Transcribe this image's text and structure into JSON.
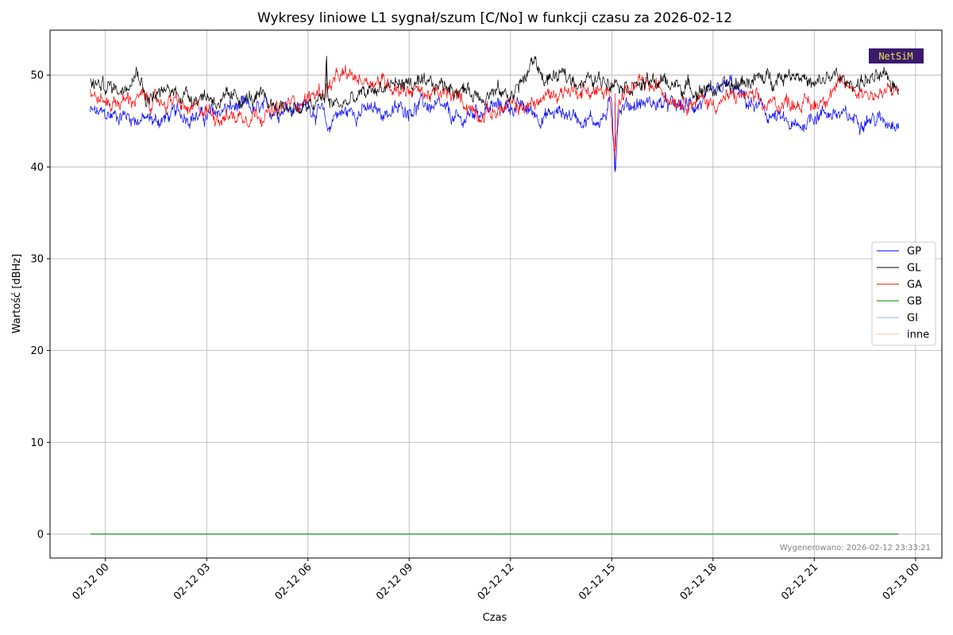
{
  "chart_data": {
    "type": "line",
    "title": "Wykresy liniowe L1 sygnał/szum [C/No] w funkcji czasu za 2026-02-12",
    "xlabel": "Czas",
    "ylabel": "Wartość [dBHz]",
    "x_unit": "hours of 2026-02-12",
    "xlim": [
      -1.64,
      24.78
    ],
    "ylim": [
      -2.6,
      54.9
    ],
    "x_ticks": [
      {
        "value": 0,
        "label": "02-12 00"
      },
      {
        "value": 3,
        "label": "02-12 03"
      },
      {
        "value": 6,
        "label": "02-12 06"
      },
      {
        "value": 9,
        "label": "02-12 09"
      },
      {
        "value": 12,
        "label": "02-12 12"
      },
      {
        "value": 15,
        "label": "02-12 15"
      },
      {
        "value": 18,
        "label": "02-12 18"
      },
      {
        "value": 21,
        "label": "02-12 21"
      },
      {
        "value": 24,
        "label": "02-13 00"
      }
    ],
    "y_ticks": [
      0,
      10,
      20,
      30,
      40,
      50
    ],
    "grid": true,
    "legend_position": "right",
    "series": [
      {
        "name": "GP",
        "color": "#0000ff",
        "x": [
          -0.45,
          0.0,
          0.5,
          1.0,
          1.5,
          2.0,
          2.5,
          3.0,
          3.5,
          4.0,
          4.5,
          5.0,
          5.5,
          6.0,
          6.4,
          6.6,
          6.8,
          7.0,
          7.5,
          8.0,
          8.5,
          9.0,
          9.5,
          10.0,
          10.5,
          11.0,
          11.5,
          12.0,
          12.5,
          13.0,
          13.5,
          14.0,
          14.5,
          14.8,
          15.0,
          15.1,
          15.2,
          15.5,
          16.0,
          16.5,
          17.0,
          17.5,
          18.0,
          18.5,
          19.0,
          19.5,
          20.0,
          20.5,
          21.0,
          21.5,
          22.0,
          22.5,
          23.0,
          23.5,
          23.5
        ],
        "y": [
          46.0,
          45.5,
          45.8,
          45.2,
          45.0,
          45.6,
          45.8,
          45.3,
          46.3,
          46.5,
          46.0,
          46.3,
          46.8,
          46.6,
          46.0,
          43.8,
          46.0,
          45.8,
          46.2,
          46.0,
          46.0,
          46.5,
          46.8,
          46.0,
          44.8,
          46.2,
          46.5,
          46.7,
          46.2,
          45.5,
          46.0,
          45.5,
          45.0,
          45.5,
          47.0,
          39.7,
          46.5,
          46.8,
          47.0,
          46.8,
          46.5,
          46.8,
          47.5,
          49.0,
          47.0,
          46.0,
          45.0,
          44.0,
          45.8,
          46.0,
          45.2,
          45.5,
          45.0,
          45.3,
          46.0
        ]
      },
      {
        "name": "GL",
        "color": "#000000",
        "x": [
          -0.45,
          0.0,
          0.5,
          0.8,
          1.0,
          1.2,
          1.5,
          2.0,
          2.5,
          3.0,
          3.5,
          4.0,
          4.5,
          5.0,
          5.5,
          6.0,
          6.5,
          6.55,
          6.6,
          7.0,
          7.5,
          8.0,
          8.5,
          9.0,
          9.5,
          10.0,
          10.5,
          11.0,
          11.5,
          12.0,
          12.5,
          12.7,
          13.0,
          13.5,
          14.0,
          14.5,
          15.0,
          15.5,
          16.0,
          16.5,
          17.0,
          17.5,
          18.0,
          18.5,
          19.0,
          19.5,
          20.0,
          20.5,
          21.0,
          21.5,
          22.0,
          22.5,
          23.0,
          23.5
        ],
        "y": [
          49.0,
          48.8,
          48.5,
          50.5,
          50.6,
          47.5,
          47.8,
          48.3,
          47.8,
          47.8,
          47.0,
          47.5,
          47.3,
          46.8,
          46.5,
          46.3,
          47.5,
          51.8,
          47.0,
          46.8,
          47.5,
          48.5,
          49.0,
          49.2,
          48.5,
          49.0,
          48.5,
          48.0,
          48.2,
          47.8,
          50.0,
          51.8,
          49.5,
          49.8,
          49.5,
          49.3,
          49.8,
          49.0,
          49.0,
          49.3,
          48.8,
          48.5,
          48.5,
          48.5,
          49.5,
          49.5,
          50.0,
          50.5,
          48.5,
          50.0,
          49.0,
          49.5,
          49.5,
          48.8
        ]
      },
      {
        "name": "GA",
        "color": "#ff0000",
        "x": [
          -0.45,
          0.0,
          0.5,
          1.0,
          1.5,
          2.0,
          2.5,
          3.0,
          3.5,
          4.0,
          4.5,
          5.0,
          5.5,
          6.0,
          6.5,
          7.0,
          7.5,
          8.0,
          8.5,
          9.0,
          9.5,
          10.0,
          10.5,
          11.0,
          11.5,
          12.0,
          12.5,
          13.0,
          13.5,
          14.0,
          14.5,
          14.9,
          15.1,
          15.2,
          15.5,
          16.0,
          16.5,
          17.0,
          17.5,
          18.0,
          18.5,
          19.0,
          19.5,
          20.0,
          20.5,
          21.0,
          21.5,
          22.0,
          22.5,
          23.0,
          23.5
        ],
        "y": [
          48.0,
          47.0,
          47.2,
          47.5,
          47.0,
          47.2,
          46.0,
          46.2,
          45.5,
          45.6,
          46.0,
          45.8,
          47.0,
          47.5,
          48.5,
          49.8,
          49.6,
          49.5,
          49.0,
          48.5,
          48.0,
          47.8,
          47.5,
          46.0,
          46.0,
          46.5,
          46.5,
          47.5,
          48.3,
          48.5,
          48.2,
          48.0,
          40.8,
          48.0,
          48.5,
          48.8,
          48.3,
          47.5,
          47.3,
          47.0,
          47.5,
          47.8,
          46.5,
          47.0,
          47.2,
          46.6,
          48.5,
          48.8,
          48.2,
          47.8,
          48.5
        ]
      },
      {
        "name": "GB",
        "color": "#008000",
        "x": [
          -0.45,
          23.5
        ],
        "y": [
          0,
          0
        ]
      },
      {
        "name": "GI",
        "color": "#8fb8e8",
        "x": [
          -0.45,
          23.5
        ],
        "y": [
          0,
          0
        ]
      },
      {
        "name": "inne",
        "color": "#f5c89a",
        "x": [
          -0.45,
          23.5
        ],
        "y": [
          0,
          0
        ]
      }
    ],
    "annotations": {
      "logo": "NetSiM",
      "footer": "Wygenerowano: 2026-02-12 23:33:21"
    }
  }
}
